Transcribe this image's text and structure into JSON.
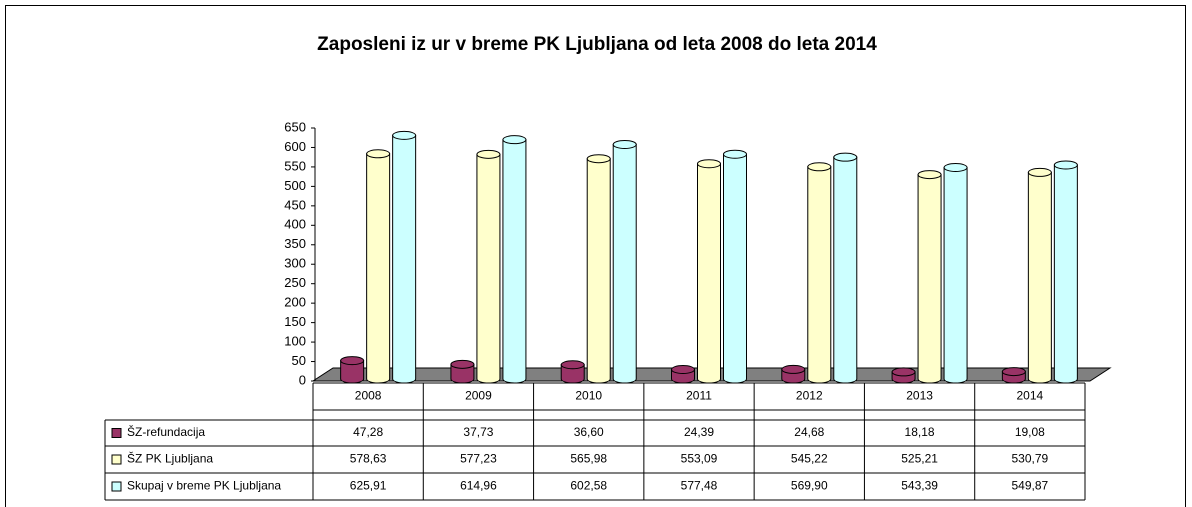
{
  "chart_data": {
    "type": "bar3d",
    "title": "Zaposleni iz ur v breme PK Ljubljana od leta  2008 do leta  2014",
    "categories": [
      "2008",
      "2009",
      "2010",
      "2011",
      "2012",
      "2013",
      "2014"
    ],
    "series": [
      {
        "name": "ŠZ-refundacija",
        "color": "#993366",
        "values": [
          47.28,
          37.73,
          36.6,
          24.39,
          24.68,
          18.18,
          19.08
        ],
        "value_labels": [
          "47,28",
          "37,73",
          "36,60",
          "24,39",
          "24,68",
          "18,18",
          "19,08"
        ]
      },
      {
        "name": "ŠZ PK Ljubljana",
        "color": "#ffffcc",
        "values": [
          578.63,
          577.23,
          565.98,
          553.09,
          545.22,
          525.21,
          530.79
        ],
        "value_labels": [
          "578,63",
          "577,23",
          "565,98",
          "553,09",
          "545,22",
          "525,21",
          "530,79"
        ]
      },
      {
        "name": "Skupaj v  breme PK Ljubljana",
        "color": "#ccffff",
        "values": [
          625.91,
          614.96,
          602.58,
          577.48,
          569.9,
          543.39,
          549.87
        ],
        "value_labels": [
          "625,91",
          "614,96",
          "602,58",
          "577,48",
          "569,90",
          "543,39",
          "549,87"
        ]
      }
    ],
    "ylim": [
      0,
      650
    ],
    "yticks": [
      0,
      50,
      100,
      150,
      200,
      250,
      300,
      350,
      400,
      450,
      500,
      550,
      600,
      650
    ]
  }
}
